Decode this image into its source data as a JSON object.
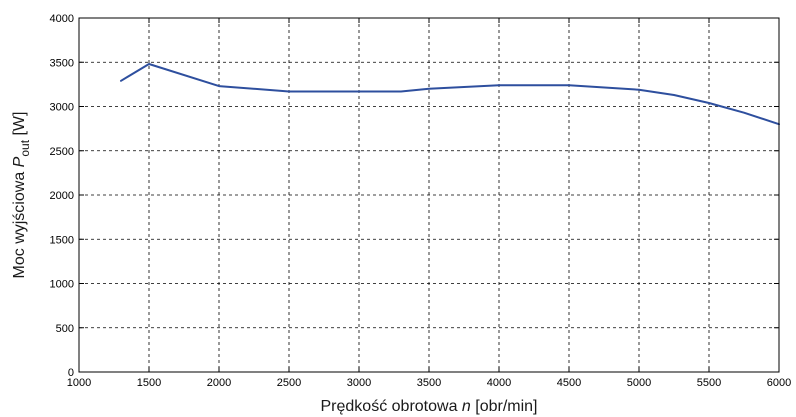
{
  "chart_data": {
    "type": "line",
    "title": "",
    "xlabel_parts": {
      "main": "Prędkość obrotowa ",
      "var": "n",
      "unit": " [obr/min]"
    },
    "ylabel_parts": {
      "main": "Moc wyjściowa ",
      "var": "P",
      "sub": "out",
      "unit": " [W]"
    },
    "xlim": [
      1000,
      6000
    ],
    "ylim": [
      0,
      4000
    ],
    "xticks": [
      1000,
      1500,
      2000,
      2500,
      3000,
      3500,
      4000,
      4500,
      5000,
      5500,
      6000
    ],
    "yticks": [
      0,
      500,
      1000,
      1500,
      2000,
      2500,
      3000,
      3500,
      4000
    ],
    "grid": true,
    "series": [
      {
        "color": "#2e4f9e",
        "x": [
          1300,
          1500,
          2000,
          2500,
          3000,
          3300,
          3500,
          4000,
          4500,
          5000,
          5250,
          5500,
          5750,
          6000
        ],
        "y": [
          3290,
          3480,
          3230,
          3170,
          3170,
          3170,
          3200,
          3240,
          3240,
          3190,
          3130,
          3040,
          2930,
          2800
        ]
      }
    ]
  }
}
